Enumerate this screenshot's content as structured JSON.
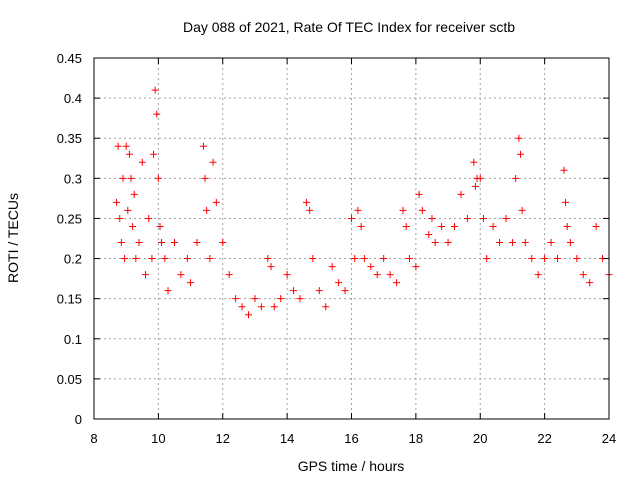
{
  "chart_data": {
    "type": "scatter",
    "title": "Day 088 of 2021, Rate Of TEC Index for receiver sctb",
    "xlabel": "GPS time / hours",
    "ylabel": "ROTI / TECUs",
    "xlim": [
      8,
      24
    ],
    "ylim": [
      0,
      0.45
    ],
    "xticks": [
      "8",
      "10",
      "12",
      "14",
      "16",
      "18",
      "20",
      "22",
      "24"
    ],
    "yticks": [
      "0",
      "0.05",
      "0.1",
      "0.15",
      "0.2",
      "0.25",
      "0.3",
      "0.35",
      "0.4",
      "0.45"
    ],
    "grid": true,
    "marker": "plus",
    "color": "#ff0000",
    "series": [
      {
        "x": [
          8.7,
          8.75,
          8.8,
          8.85,
          8.9,
          8.95,
          9.0,
          9.05,
          9.1,
          9.15,
          9.2,
          9.25,
          9.3,
          9.4,
          9.5,
          9.6,
          9.7,
          9.8,
          9.85,
          9.9,
          9.95,
          10.0,
          10.05,
          10.1,
          10.2,
          10.3,
          10.5,
          10.7,
          10.9,
          11.0,
          11.2,
          11.4,
          11.45,
          11.5,
          11.6,
          11.7,
          11.8,
          12.0,
          12.2,
          12.4,
          12.6,
          12.8,
          13.0,
          13.2,
          13.4,
          13.5,
          13.6,
          13.8,
          14.0,
          14.2,
          14.4,
          14.6,
          14.7,
          14.8,
          15.0,
          15.2,
          15.4,
          15.6,
          15.8,
          16.0,
          16.1,
          16.2,
          16.3,
          16.4,
          16.6,
          16.8,
          17.0,
          17.2,
          17.4,
          17.6,
          17.7,
          17.8,
          18.0,
          18.1,
          18.2,
          18.4,
          18.5,
          18.6,
          18.8,
          19.0,
          19.2,
          19.4,
          19.6,
          19.8,
          19.85,
          19.9,
          20.0,
          20.1,
          20.2,
          20.4,
          20.6,
          20.8,
          21.0,
          21.1,
          21.2,
          21.25,
          21.3,
          21.4,
          21.6,
          21.8,
          22.0,
          22.2,
          22.4,
          22.6,
          22.65,
          22.7,
          22.8,
          23.0,
          23.2,
          23.4,
          23.6,
          23.8,
          24.0
        ],
        "y": [
          0.27,
          0.34,
          0.25,
          0.22,
          0.3,
          0.2,
          0.34,
          0.26,
          0.33,
          0.3,
          0.24,
          0.28,
          0.2,
          0.22,
          0.32,
          0.18,
          0.25,
          0.2,
          0.33,
          0.41,
          0.38,
          0.3,
          0.24,
          0.22,
          0.2,
          0.16,
          0.22,
          0.18,
          0.2,
          0.17,
          0.22,
          0.34,
          0.3,
          0.26,
          0.2,
          0.32,
          0.27,
          0.22,
          0.18,
          0.15,
          0.14,
          0.13,
          0.15,
          0.14,
          0.2,
          0.19,
          0.14,
          0.15,
          0.18,
          0.16,
          0.15,
          0.27,
          0.26,
          0.2,
          0.16,
          0.14,
          0.19,
          0.17,
          0.16,
          0.25,
          0.2,
          0.26,
          0.24,
          0.2,
          0.19,
          0.18,
          0.2,
          0.18,
          0.17,
          0.26,
          0.24,
          0.2,
          0.19,
          0.28,
          0.26,
          0.23,
          0.25,
          0.22,
          0.24,
          0.22,
          0.24,
          0.28,
          0.25,
          0.32,
          0.29,
          0.3,
          0.3,
          0.25,
          0.2,
          0.24,
          0.22,
          0.25,
          0.22,
          0.3,
          0.35,
          0.33,
          0.26,
          0.22,
          0.2,
          0.18,
          0.2,
          0.22,
          0.2,
          0.31,
          0.27,
          0.24,
          0.22,
          0.2,
          0.18,
          0.17,
          0.24,
          0.2,
          0.18
        ]
      }
    ]
  }
}
